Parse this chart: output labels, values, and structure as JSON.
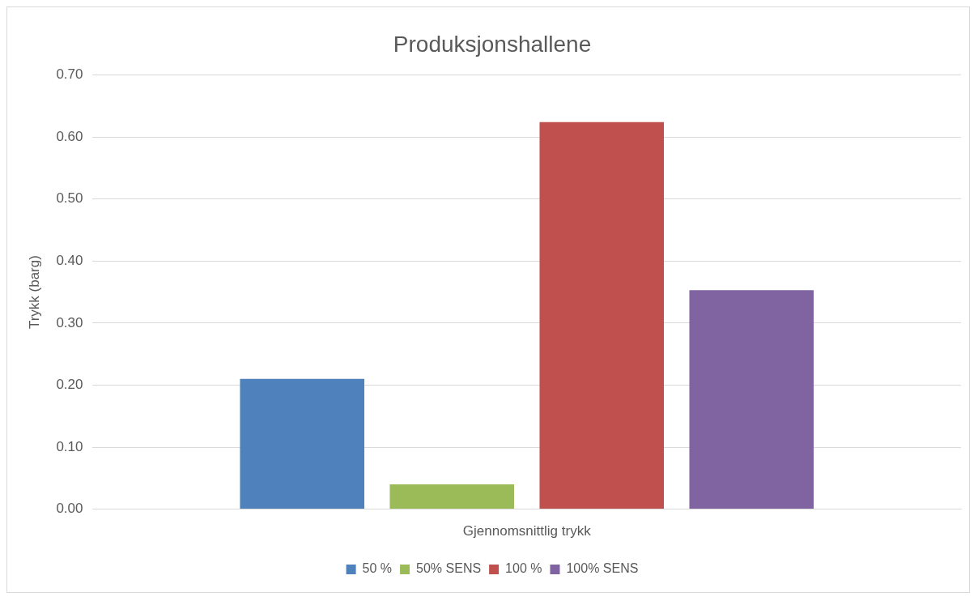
{
  "chart_data": {
    "type": "bar",
    "title": "Produksjonshallene",
    "ylabel": "Trykk (barg)",
    "categories": [
      "Gjennomsnittlig trykk"
    ],
    "series": [
      {
        "name": "50 %",
        "color": "#4f81bd",
        "values": [
          0.21
        ]
      },
      {
        "name": "50% SENS",
        "color": "#9bbb59",
        "values": [
          0.04
        ]
      },
      {
        "name": "100 %",
        "color": "#c0504d",
        "values": [
          0.624
        ]
      },
      {
        "name": "100% SENS",
        "color": "#8064a2",
        "values": [
          0.353
        ]
      }
    ],
    "ylim": [
      0,
      0.7
    ],
    "yticks": [
      {
        "value": 0,
        "label": "0.00"
      },
      {
        "value": 0.1,
        "label": "0.10"
      },
      {
        "value": 0.2,
        "label": "0.20"
      },
      {
        "value": 0.3,
        "label": "0.30"
      },
      {
        "value": 0.4,
        "label": "0.40"
      },
      {
        "value": 0.5,
        "label": "0.50"
      },
      {
        "value": 0.6,
        "label": "0.60"
      },
      {
        "value": 0.7,
        "label": "0.70"
      }
    ],
    "grid": "y",
    "legend": "bottom"
  }
}
